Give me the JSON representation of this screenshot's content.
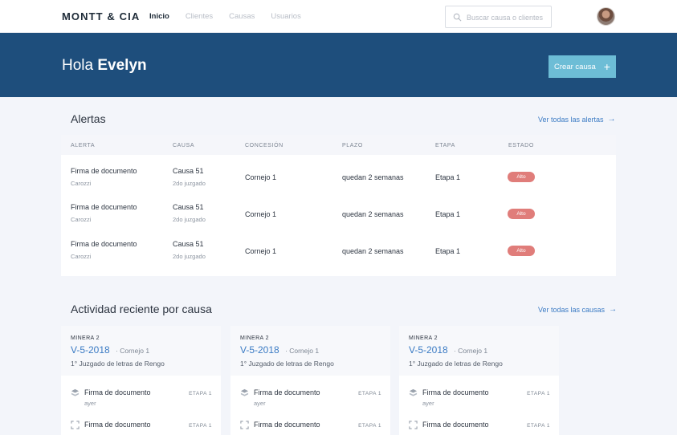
{
  "brand": "MONTT & CIA",
  "nav": [
    {
      "label": "Inicio",
      "active": true
    },
    {
      "label": "Clientes",
      "active": false
    },
    {
      "label": "Causas",
      "active": false
    },
    {
      "label": "Usuarios",
      "active": false
    }
  ],
  "search": {
    "placeholder": "Buscar causa o clientes",
    "value": ""
  },
  "hero": {
    "greeting_prefix": "Hola",
    "user_name": "Evelyn",
    "create_label": "Crear causa"
  },
  "alerts": {
    "title": "Alertas",
    "view_all": "Ver todas las alertas",
    "columns": [
      "ALERTA",
      "CAUSA",
      "CONCESIÓN",
      "PLAZO",
      "ETAPA",
      "ESTADO"
    ],
    "rows": [
      {
        "alerta": "Firma de documento",
        "cliente": "Carozzi",
        "causa": "Causa 51",
        "juzgado": "2do juzgado",
        "concesion": "Cornejo 1",
        "plazo": "quedan 2 semanas",
        "etapa": "Etapa 1",
        "estado": "Alto"
      },
      {
        "alerta": "Firma de documento",
        "cliente": "Carozzi",
        "causa": "Causa 51",
        "juzgado": "2do juzgado",
        "concesion": "Cornejo 1",
        "plazo": "quedan 2 semanas",
        "etapa": "Etapa 1",
        "estado": "Alto"
      },
      {
        "alerta": "Firma de documento",
        "cliente": "Carozzi",
        "causa": "Causa 51",
        "juzgado": "2do juzgado",
        "concesion": "Cornejo 1",
        "plazo": "quedan 2 semanas",
        "etapa": "Etapa 1",
        "estado": "Alto"
      }
    ]
  },
  "activity": {
    "title": "Actividad reciente por causa",
    "view_all": "Ver todas las causas",
    "cards": [
      {
        "tag": "MINERA 2",
        "code": "V-5-2018",
        "concession": "Cornejo 1",
        "court": "1° Juzgado de letras de Rengo",
        "items": [
          {
            "icon": "layers-icon",
            "title": "Firma de documento",
            "when": "ayer",
            "stage": "ETAPA 1"
          },
          {
            "icon": "expand-icon",
            "title": "Firma de documento",
            "when": "",
            "stage": "ETAPA 1"
          }
        ]
      },
      {
        "tag": "MINERA 2",
        "code": "V-5-2018",
        "concession": "Cornejo 1",
        "court": "1° Juzgado de letras de Rengo",
        "items": [
          {
            "icon": "layers-icon",
            "title": "Firma de documento",
            "when": "ayer",
            "stage": "ETAPA 1"
          },
          {
            "icon": "expand-icon",
            "title": "Firma de documento",
            "when": "",
            "stage": "ETAPA 1"
          }
        ]
      },
      {
        "tag": "MINERA 2",
        "code": "V-5-2018",
        "concession": "Cornejo 1",
        "court": "1° Juzgado de letras de Rengo",
        "items": [
          {
            "icon": "layers-icon",
            "title": "Firma de documento",
            "when": "ayer",
            "stage": "ETAPA 1"
          },
          {
            "icon": "expand-icon",
            "title": "Firma de documento",
            "when": "",
            "stage": "ETAPA 1"
          }
        ]
      }
    ]
  },
  "colors": {
    "hero": "#1e4e7c",
    "accent": "#6dbdd6",
    "link": "#3b7bc4",
    "badge_alto": "#e07d7a"
  }
}
